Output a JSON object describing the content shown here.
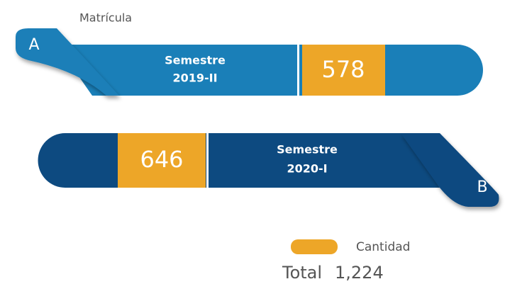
{
  "title": "Matrícula",
  "items": [
    {
      "tag": "A",
      "label": [
        "Semestre",
        "2019-II"
      ],
      "value": 578
    },
    {
      "tag": "B",
      "label": [
        "Semestre",
        "2020-I"
      ],
      "value": 646
    }
  ],
  "legend": "Cantidad",
  "total": {
    "label": "Total",
    "value": "1,224"
  }
}
